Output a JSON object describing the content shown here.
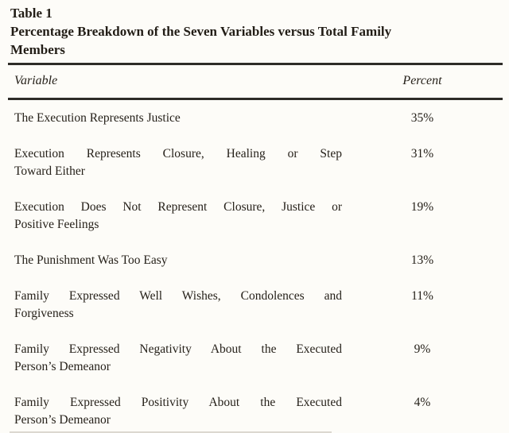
{
  "caption": {
    "table_number": "Table 1",
    "title": "Percentage Breakdown of the Seven Variables versus Total Family Members",
    "title_line1": "Percentage Breakdown of the Seven Variables versus Total Family",
    "title_line2": "Members"
  },
  "table": {
    "columns": [
      "Variable",
      "Percent"
    ],
    "rows": [
      {
        "variable": "The Execution Represents Justice",
        "variable_lines": [
          "The Execution Represents Justice"
        ],
        "percent": "35%"
      },
      {
        "variable": "Execution Represents Closure, Healing or Step Toward Either",
        "variable_lines": [
          "Execution Represents Closure, Healing or Step",
          "Toward Either"
        ],
        "percent": "31%"
      },
      {
        "variable": "Execution Does Not Represent Closure, Justice or Positive Feelings",
        "variable_lines": [
          "Execution Does Not Represent Closure, Justice or",
          "Positive Feelings"
        ],
        "percent": "19%"
      },
      {
        "variable": "The Punishment Was Too Easy",
        "variable_lines": [
          "The Punishment Was Too Easy"
        ],
        "percent": "13%"
      },
      {
        "variable": "Family Expressed Well Wishes, Condolences and Forgiveness",
        "variable_lines": [
          "Family Expressed Well Wishes, Condolences and",
          "Forgiveness"
        ],
        "percent": "11%"
      },
      {
        "variable": "Family Expressed Negativity About the Executed Person’s Demeanor",
        "variable_lines": [
          "Family Expressed Negativity About the Executed",
          "Person’s Demeanor"
        ],
        "percent": "9%"
      },
      {
        "variable": "Family Expressed Positivity About the Executed Person’s Demeanor",
        "variable_lines": [
          "Family Expressed Positivity About the Executed",
          "Person’s Demeanor"
        ],
        "percent": "4%"
      }
    ]
  },
  "colors": {
    "background": "#fdfcf8",
    "text": "#26211a",
    "rule": "#2e2c28"
  }
}
